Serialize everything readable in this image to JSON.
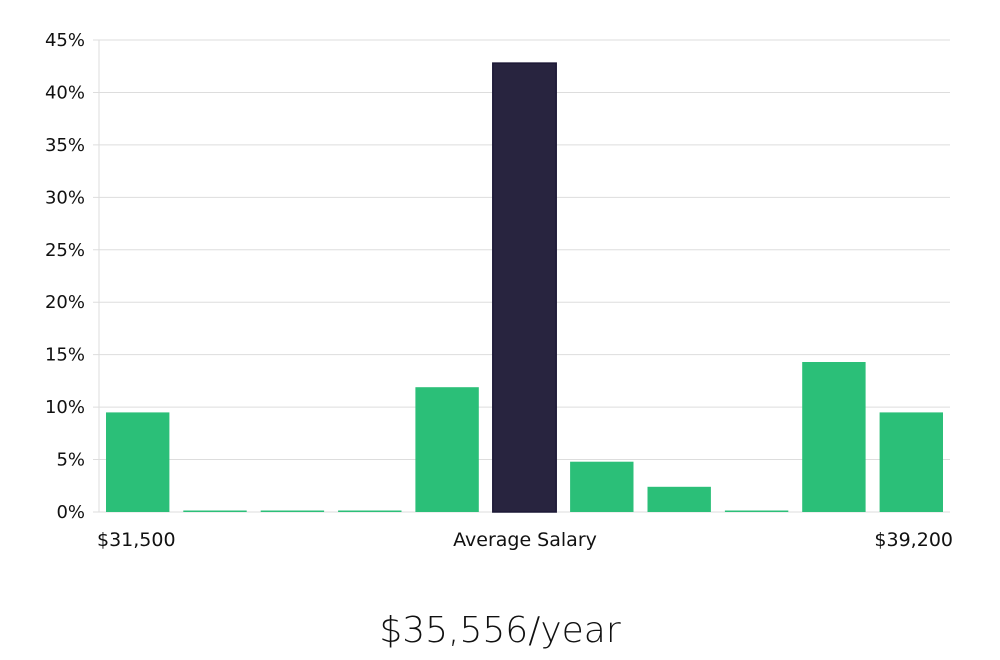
{
  "chart_data": {
    "type": "bar",
    "values": [
      9.5,
      0,
      0,
      0,
      11.9,
      42.8,
      4.8,
      2.4,
      0,
      14.3,
      9.5
    ],
    "highlight_index": 5,
    "ylim": [
      0,
      45
    ],
    "yticks": [
      0,
      5,
      10,
      15,
      20,
      25,
      30,
      35,
      40,
      45
    ],
    "ytick_format": "%",
    "grid": true,
    "colors": {
      "bar": "#2bbf78",
      "highlight": "#28243f",
      "grid": "#dddddd"
    },
    "x_labels": {
      "left": "$31,500",
      "center": "Average Salary",
      "right": "$39,200"
    }
  },
  "footer": {
    "salary": "$35,556/year"
  }
}
